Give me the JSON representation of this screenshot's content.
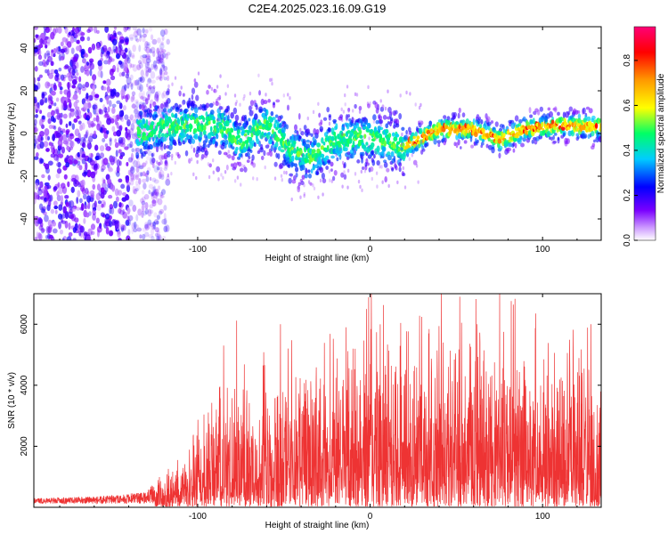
{
  "title": "C2E4.2025.023.16.09.G19",
  "chart_data": [
    {
      "type": "heatmap",
      "xlabel": "Height of straight line (km)",
      "ylabel": "Frequency (Hz)",
      "xlim": [
        -195,
        134
      ],
      "ylim": [
        -50,
        50
      ],
      "xticks": [
        -100,
        0,
        100
      ],
      "xtick_labels": [
        "-100",
        "0",
        "100"
      ],
      "yticks": [
        -40,
        -20,
        0,
        20,
        40
      ],
      "ytick_labels": [
        "-40",
        "-20",
        "0",
        "20",
        "40"
      ],
      "grid": false,
      "colorbar": {
        "label": "Normalized spectral amplitude",
        "range": [
          0,
          0.95
        ],
        "ticks": [
          0,
          0.2,
          0.4,
          0.6,
          0.8
        ],
        "tick_labels": [
          "0.0",
          "0.2",
          "0.4",
          "0.6",
          "0.8"
        ],
        "colormap": [
          "#ffffff",
          "#cc99ff",
          "#7a00ff",
          "#0000ff",
          "#00ccff",
          "#00ff66",
          "#ffff00",
          "#ff9900",
          "#ff0000",
          "#ff0077"
        ]
      },
      "noise_region_x": [
        -195,
        -125
      ],
      "ridge_center": [
        {
          "x": -135,
          "y": 0
        },
        {
          "x": -120,
          "y": 3
        },
        {
          "x": -100,
          "y": 4
        },
        {
          "x": -85,
          "y": 3
        },
        {
          "x": -75,
          "y": -4
        },
        {
          "x": -60,
          "y": 5
        },
        {
          "x": -45,
          "y": -8
        },
        {
          "x": -35,
          "y": -12
        },
        {
          "x": -20,
          "y": -3
        },
        {
          "x": 0,
          "y": -2
        },
        {
          "x": 20,
          "y": -6
        },
        {
          "x": 40,
          "y": 2
        },
        {
          "x": 60,
          "y": 2
        },
        {
          "x": 75,
          "y": -3
        },
        {
          "x": 90,
          "y": 2
        },
        {
          "x": 110,
          "y": 4
        },
        {
          "x": 134,
          "y": 3
        }
      ]
    },
    {
      "type": "line",
      "xlabel": "Height of straight line (km)",
      "ylabel": "SNR (10 * v/v)",
      "xlim": [
        -195,
        134
      ],
      "ylim": [
        0,
        7000
      ],
      "xticks": [
        -100,
        0,
        100
      ],
      "xtick_labels": [
        "-100",
        "0",
        "100"
      ],
      "yticks": [
        2000,
        4000,
        6000
      ],
      "ytick_labels": [
        "2000",
        "4000",
        "6000"
      ],
      "grid": false,
      "series_color": "#ee3333",
      "envelope": [
        {
          "x": -195,
          "y": 300
        },
        {
          "x": -160,
          "y": 350
        },
        {
          "x": -130,
          "y": 500
        },
        {
          "x": -120,
          "y": 1200
        },
        {
          "x": -110,
          "y": 1900
        },
        {
          "x": -100,
          "y": 2500
        },
        {
          "x": -85,
          "y": 4800
        },
        {
          "x": -70,
          "y": 4500
        },
        {
          "x": -50,
          "y": 5000
        },
        {
          "x": -30,
          "y": 5500
        },
        {
          "x": -10,
          "y": 5000
        },
        {
          "x": 0,
          "y": 6400
        },
        {
          "x": 20,
          "y": 5500
        },
        {
          "x": 40,
          "y": 6000
        },
        {
          "x": 52,
          "y": 6900
        },
        {
          "x": 70,
          "y": 5700
        },
        {
          "x": 90,
          "y": 6000
        },
        {
          "x": 110,
          "y": 5500
        },
        {
          "x": 125,
          "y": 5900
        },
        {
          "x": 134,
          "y": 3400
        }
      ],
      "peaks": [
        {
          "x": -85,
          "y": 5300
        },
        {
          "x": -52,
          "y": 6000
        },
        {
          "x": -10,
          "y": 5200
        },
        {
          "x": -2,
          "y": 6500
        },
        {
          "x": 34,
          "y": 5700
        },
        {
          "x": 52,
          "y": 6900
        },
        {
          "x": 62,
          "y": 6000
        },
        {
          "x": 96,
          "y": 6350
        },
        {
          "x": 128,
          "y": 6000
        }
      ]
    }
  ]
}
